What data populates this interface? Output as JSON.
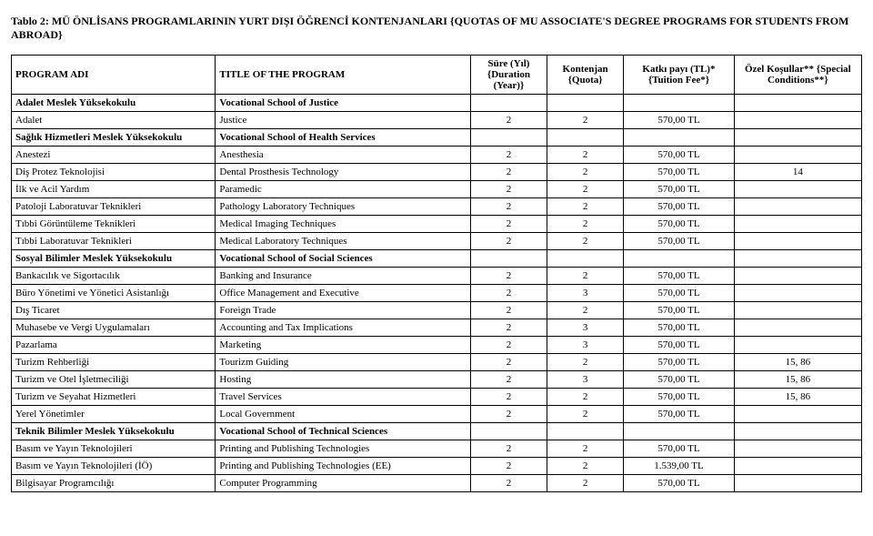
{
  "title": "Tablo 2: MÜ ÖNLİSANS PROGRAMLARININ YURT DIŞI ÖĞRENCİ KONTENJANLARI {QUOTAS OF MU ASSOCIATE'S DEGREE PROGRAMS FOR STUDENTS FROM ABROAD}",
  "headers": {
    "program_adi": "PROGRAM ADI",
    "title_of_program": "TITLE OF THE PROGRAM",
    "duration": "Süre (Yıl) {Duration (Year)}",
    "quota": "Kontenjan {Quota}",
    "tuition": "Katkı payı (TL)* {Tuition Fee*}",
    "conditions": "Özel Koşullar** {Special Conditions**}"
  },
  "rows": [
    {
      "type": "section",
      "tr": "Adalet Meslek Yüksekokulu",
      "en": "Vocational School of Justice"
    },
    {
      "tr": "Adalet",
      "en": "Justice",
      "dur": "2",
      "q": "2",
      "fee": "570,00 TL",
      "cond": ""
    },
    {
      "type": "section",
      "tr": "Sağlık Hizmetleri Meslek Yüksekokulu",
      "en": "Vocational School of Health Services"
    },
    {
      "tr": "Anestezi",
      "en": "Anesthesia",
      "dur": "2",
      "q": "2",
      "fee": "570,00 TL",
      "cond": ""
    },
    {
      "tr": "Diş Protez Teknolojisi",
      "en": "Dental Prosthesis Technology",
      "dur": "2",
      "q": "2",
      "fee": "570,00 TL",
      "cond": "14"
    },
    {
      "tr": "İlk ve Acil Yardım",
      "en": "Paramedic",
      "dur": "2",
      "q": "2",
      "fee": "570,00 TL",
      "cond": ""
    },
    {
      "tr": "Patoloji Laboratuvar Teknikleri",
      "en": "Pathology Laboratory Techniques",
      "dur": "2",
      "q": "2",
      "fee": "570,00 TL",
      "cond": ""
    },
    {
      "tr": "Tıbbi Görüntüleme Teknikleri",
      "en": "Medical Imaging Techniques",
      "dur": "2",
      "q": "2",
      "fee": "570,00 TL",
      "cond": ""
    },
    {
      "tr": "Tıbbi Laboratuvar Teknikleri",
      "en": "Medical Laboratory Techniques",
      "dur": "2",
      "q": "2",
      "fee": "570,00 TL",
      "cond": ""
    },
    {
      "type": "section",
      "tr": "Sosyal Bilimler Meslek Yüksekokulu",
      "en": "Vocational School of Social Sciences"
    },
    {
      "tr": "Bankacılık ve Sigortacılık",
      "en": "Banking and Insurance",
      "dur": "2",
      "q": "2",
      "fee": "570,00 TL",
      "cond": ""
    },
    {
      "tr": "Büro Yönetimi ve Yönetici Asistanlığı",
      "en": "Office Management and Executive",
      "dur": "2",
      "q": "3",
      "fee": "570,00 TL",
      "cond": ""
    },
    {
      "tr": "Dış Ticaret",
      "en": "Foreign Trade",
      "dur": "2",
      "q": "2",
      "fee": "570,00 TL",
      "cond": ""
    },
    {
      "tr": "Muhasebe ve Vergi Uygulamaları",
      "en": "Accounting and Tax Implications",
      "dur": "2",
      "q": "3",
      "fee": "570,00 TL",
      "cond": ""
    },
    {
      "tr": "Pazarlama",
      "en": "Marketing",
      "dur": "2",
      "q": "3",
      "fee": "570,00 TL",
      "cond": ""
    },
    {
      "tr": "Turizm Rehberliği",
      "en": "Tourizm Guiding",
      "dur": "2",
      "q": "2",
      "fee": "570,00 TL",
      "cond": "15, 86"
    },
    {
      "tr": "Turizm ve Otel İşletmeciliği",
      "en": "Hosting",
      "dur": "2",
      "q": "3",
      "fee": "570,00 TL",
      "cond": "15, 86"
    },
    {
      "tr": "Turizm ve Seyahat Hizmetleri",
      "en": "Travel Services",
      "dur": "2",
      "q": "2",
      "fee": "570,00 TL",
      "cond": "15, 86"
    },
    {
      "tr": "Yerel Yönetimler",
      "en": "Local Government",
      "dur": "2",
      "q": "2",
      "fee": "570,00 TL",
      "cond": ""
    },
    {
      "type": "section",
      "tr": "Teknik Bilimler Meslek Yüksekokulu",
      "en": "Vocational School of Technical Sciences"
    },
    {
      "tr": "Basım ve Yayın Teknolojileri",
      "en": "Printing and Publishing Technologies",
      "dur": "2",
      "q": "2",
      "fee": "570,00 TL",
      "cond": ""
    },
    {
      "tr": "Basım ve Yayın Teknolojileri (İÖ)",
      "en": "Printing and Publishing Technologies (EE)",
      "dur": "2",
      "q": "2",
      "fee": "1.539,00 TL",
      "cond": ""
    },
    {
      "tr": "Bilgisayar Programcılığı",
      "en": "Computer Programming",
      "dur": "2",
      "q": "2",
      "fee": "570,00 TL",
      "cond": ""
    }
  ]
}
